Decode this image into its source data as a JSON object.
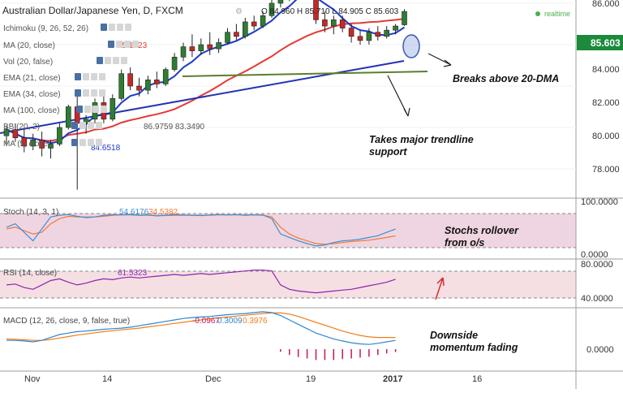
{
  "header": {
    "title": "Australian Dollar/Japanese Yen, D, FXCM",
    "ohlc": "O 84.960 H 85.710 L 84.905 C 85.603",
    "live_label": "realtime"
  },
  "indicators": {
    "ichimoku": "Ichimoku (9, 26, 52, 26)",
    "ma20": "MA (20, close)",
    "ma20_value": "85.1623",
    "vol": "Vol (20, false)",
    "ema21": "EMA (21, close)",
    "ema34": "EMA (34, close)",
    "ema100": "MA (100, close)",
    "bb": "BB (20, 2)",
    "bb_values": "86.9759  83.3490",
    "ma5": "MA (5, close)",
    "ma5_value": "84.6518"
  },
  "annotations": {
    "breaks": "Breaks above 20-DMA",
    "trend_1": "Takes major trendline",
    "trend_2": "support",
    "stoch_1": "Stochs rollover",
    "stoch_2": "from o/s",
    "macd_1": "Downside",
    "macd_2": "momentum fading"
  },
  "panes": {
    "stoch": {
      "label": "Stoch (14, 3, 1)",
      "k": "54.6176",
      "d": "34.5382"
    },
    "rsi": {
      "label": "RSI (14, close)",
      "value": "61.5323"
    },
    "macd": {
      "label": "MACD (12, 26, close, 9, false, true)",
      "hist": "-0.0967",
      "macd": "0.3009",
      "signal": "0.3976"
    }
  },
  "axis": {
    "price_ticks": [
      "86.000",
      "84.000",
      "82.000",
      "80.000",
      "78.000"
    ],
    "last_price": "85.603",
    "stoch_ticks": [
      "100.0000",
      "0.0000"
    ],
    "rsi_ticks": [
      "80.0000",
      "40.0000"
    ],
    "macd_ticks": [
      "0.0000"
    ],
    "x_labels": [
      "Nov",
      "14",
      "Dec",
      "19",
      "2017",
      "16"
    ]
  },
  "colors": {
    "up": "#2e7d32",
    "down": "#c62828",
    "ma20": "#e53935",
    "ma5": "#1e3cc8",
    "trend": "#2232b4",
    "support": "#5b7f2a",
    "stoch_k": "#3d8fd6",
    "stoch_d": "#f07a3a",
    "rsi": "#8e24aa",
    "macd": "#2f86d1",
    "signal": "#ef7d1a",
    "hist": "#c2185b"
  },
  "chart_data": [
    {
      "type": "candlestick",
      "title": "Australian Dollar/Japanese Yen, D, FXCM",
      "ylim": [
        77,
        88
      ],
      "x_labels": [
        "Nov",
        "14",
        "Dec",
        "19",
        "2017",
        "16"
      ],
      "candles": [
        [
          79.6,
          80.1,
          79.2,
          79.9
        ],
        [
          79.9,
          80.2,
          79.3,
          79.5
        ],
        [
          79.5,
          79.9,
          78.8,
          79.1
        ],
        [
          79.1,
          79.7,
          78.9,
          79.4
        ],
        [
          79.4,
          79.8,
          78.6,
          79.0
        ],
        [
          79.0,
          79.4,
          78.5,
          79.2
        ],
        [
          79.2,
          80.2,
          79.1,
          80.0
        ],
        [
          80.0,
          81.1,
          79.9,
          81.0
        ],
        [
          81.0,
          81.5,
          77.0,
          80.2
        ],
        [
          80.2,
          80.6,
          79.7,
          80.4
        ],
        [
          80.4,
          81.4,
          80.2,
          81.2
        ],
        [
          81.2,
          81.5,
          80.2,
          80.4
        ],
        [
          80.4,
          81.6,
          80.3,
          81.4
        ],
        [
          81.4,
          82.8,
          81.3,
          82.6
        ],
        [
          82.6,
          82.9,
          81.8,
          82.0
        ],
        [
          82.0,
          82.4,
          81.5,
          81.8
        ],
        [
          81.8,
          82.5,
          81.6,
          82.3
        ],
        [
          82.3,
          82.7,
          81.9,
          82.1
        ],
        [
          82.1,
          82.9,
          82.0,
          82.8
        ],
        [
          82.8,
          83.6,
          82.7,
          83.4
        ],
        [
          83.4,
          84.1,
          83.2,
          83.9
        ],
        [
          83.9,
          84.5,
          83.4,
          83.7
        ],
        [
          83.7,
          84.3,
          83.5,
          84.0
        ],
        [
          84.0,
          84.6,
          83.5,
          83.8
        ],
        [
          83.8,
          84.3,
          83.6,
          84.1
        ],
        [
          84.1,
          84.8,
          84.0,
          84.6
        ],
        [
          84.6,
          85.0,
          84.2,
          84.4
        ],
        [
          84.4,
          85.3,
          84.3,
          85.1
        ],
        [
          85.1,
          85.4,
          84.7,
          84.9
        ],
        [
          84.9,
          85.6,
          84.8,
          85.4
        ],
        [
          85.4,
          86.2,
          85.3,
          86.0
        ],
        [
          86.0,
          86.6,
          85.8,
          86.4
        ],
        [
          86.4,
          86.8,
          86.1,
          86.6
        ],
        [
          86.6,
          87.1,
          86.4,
          86.9
        ],
        [
          86.9,
          87.1,
          86.2,
          86.3
        ],
        [
          86.3,
          86.5,
          85.0,
          85.2
        ],
        [
          85.2,
          85.6,
          84.6,
          84.9
        ],
        [
          84.9,
          85.4,
          84.5,
          85.2
        ],
        [
          85.2,
          85.4,
          84.6,
          84.8
        ],
        [
          84.8,
          85.0,
          84.1,
          84.4
        ],
        [
          84.4,
          84.7,
          84.0,
          84.2
        ],
        [
          84.2,
          84.8,
          84.0,
          84.6
        ],
        [
          84.6,
          84.9,
          84.2,
          84.4
        ],
        [
          84.4,
          84.9,
          84.3,
          84.7
        ],
        [
          84.7,
          85.0,
          84.5,
          84.9
        ],
        [
          84.96,
          85.71,
          84.905,
          85.603
        ]
      ]
    },
    {
      "type": "line",
      "title": "Stoch (14, 3, 1)",
      "ylim": [
        0,
        100
      ],
      "series": [
        {
          "name": "%K",
          "values": [
            60,
            70,
            45,
            20,
            55,
            90,
            95,
            97,
            92,
            88,
            90,
            95,
            97,
            96,
            97,
            95,
            96,
            93,
            95,
            97,
            96,
            95,
            94,
            96,
            97,
            96,
            97,
            95,
            96,
            96,
            85,
            40,
            30,
            20,
            12,
            5,
            8,
            15,
            20,
            22,
            25,
            30,
            35,
            45,
            54.6
          ]
        },
        {
          "name": "%D",
          "values": [
            55,
            60,
            50,
            40,
            45,
            70,
            85,
            92,
            90,
            90,
            90,
            92,
            95,
            96,
            96,
            95,
            95,
            94,
            94,
            95,
            95,
            95,
            95,
            95,
            96,
            96,
            96,
            96,
            96,
            95,
            90,
            60,
            40,
            28,
            20,
            12,
            10,
            12,
            15,
            18,
            20,
            22,
            26,
            30,
            34.5
          ]
        }
      ]
    },
    {
      "type": "line",
      "title": "RSI (14, close)",
      "ylim": [
        20,
        90
      ],
      "series": [
        {
          "name": "RSI",
          "values": [
            55,
            56,
            52,
            50,
            55,
            60,
            62,
            58,
            55,
            57,
            60,
            62,
            61,
            63,
            64,
            63,
            64,
            65,
            66,
            67,
            66,
            67,
            68,
            67,
            68,
            69,
            70,
            71,
            72,
            72,
            71,
            55,
            50,
            48,
            47,
            46,
            47,
            48,
            49,
            50,
            52,
            54,
            56,
            58,
            61.5
          ]
        }
      ]
    },
    {
      "type": "line",
      "title": "MACD (12, 26, close, 9, false, true)",
      "ylim": [
        -0.4,
        1.6
      ],
      "series": [
        {
          "name": "MACD",
          "values": [
            0.3,
            0.3,
            0.28,
            0.25,
            0.3,
            0.4,
            0.5,
            0.55,
            0.6,
            0.62,
            0.65,
            0.68,
            0.7,
            0.72,
            0.75,
            0.8,
            0.85,
            0.9,
            0.95,
            1.0,
            1.05,
            1.08,
            1.1,
            1.12,
            1.15,
            1.18,
            1.2,
            1.22,
            1.25,
            1.28,
            1.25,
            1.15,
            1.0,
            0.85,
            0.7,
            0.55,
            0.45,
            0.35,
            0.28,
            0.22,
            0.18,
            0.16,
            0.2,
            0.25,
            0.3
          ]
        },
        {
          "name": "Signal",
          "values": [
            0.35,
            0.34,
            0.32,
            0.3,
            0.3,
            0.33,
            0.38,
            0.43,
            0.48,
            0.52,
            0.56,
            0.6,
            0.63,
            0.66,
            0.69,
            0.72,
            0.76,
            0.8,
            0.84,
            0.88,
            0.92,
            0.96,
            1.0,
            1.04,
            1.07,
            1.1,
            1.13,
            1.16,
            1.19,
            1.22,
            1.24,
            1.24,
            1.2,
            1.12,
            1.02,
            0.92,
            0.82,
            0.72,
            0.62,
            0.54,
            0.47,
            0.42,
            0.4,
            0.4,
            0.4
          ]
        },
        {
          "name": "Histogram",
          "values": [
            0,
            0,
            0,
            0,
            0,
            0,
            0,
            0,
            0,
            0,
            0,
            0,
            0,
            0,
            0,
            0,
            0,
            0,
            0,
            0,
            0,
            0,
            0,
            0,
            0,
            0,
            0,
            0,
            0,
            0,
            0,
            -0.09,
            -0.2,
            -0.27,
            -0.32,
            -0.37,
            -0.37,
            -0.37,
            -0.34,
            -0.32,
            -0.29,
            -0.26,
            -0.2,
            -0.15,
            -0.1
          ]
        }
      ]
    }
  ]
}
